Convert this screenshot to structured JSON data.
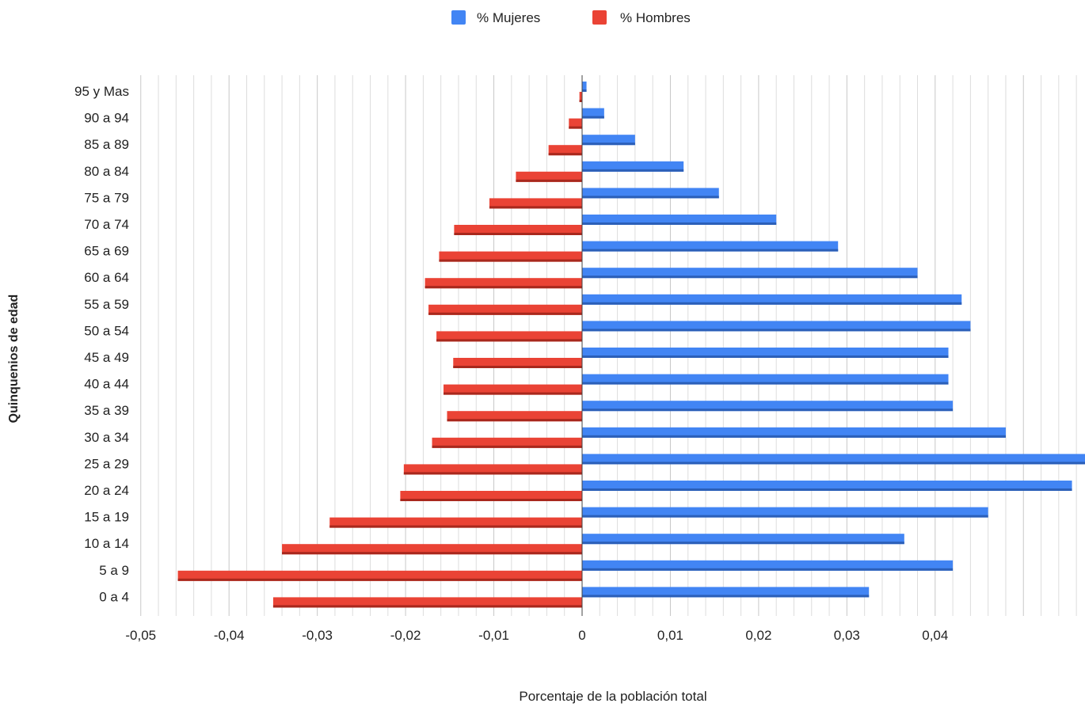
{
  "chart_data": {
    "type": "bar",
    "orientation": "horizontal",
    "xlabel": "Porcentaje de la población total",
    "ylabel": "Quinquenios de edad",
    "xlim": [
      -0.05,
      0.057
    ],
    "x_ticks": [
      {
        "value": -0.05,
        "label": "-0,05"
      },
      {
        "value": -0.04,
        "label": "-0,04"
      },
      {
        "value": -0.03,
        "label": "-0,03"
      },
      {
        "value": -0.02,
        "label": "-0,02"
      },
      {
        "value": -0.01,
        "label": "-0,01"
      },
      {
        "value": 0,
        "label": "0"
      },
      {
        "value": 0.01,
        "label": "0,01"
      },
      {
        "value": 0.02,
        "label": "0,02"
      },
      {
        "value": 0.03,
        "label": "0,03"
      },
      {
        "value": 0.04,
        "label": "0,04"
      }
    ],
    "grid": true,
    "legend_position": "top",
    "categories": [
      "95 y Mas",
      "90 a 94",
      "85 a 89",
      "80 a 84",
      "75 a 79",
      "70 a 74",
      "65 a 69",
      "60 a 64",
      "55 a 59",
      "50 a 54",
      "45 a 49",
      "40 a 44",
      "35 a 39",
      "30 a 34",
      "25 a 29",
      "20 a 24",
      "15 a 19",
      "10 a 14",
      "5 a 9",
      "0 a 4"
    ],
    "series": [
      {
        "name": "% Mujeres",
        "color": "#4285f4",
        "values": [
          0.0005,
          0.0025,
          0.006,
          0.0115,
          0.0155,
          0.022,
          0.029,
          0.038,
          0.043,
          0.044,
          0.0415,
          0.0415,
          0.042,
          0.048,
          0.057,
          0.0555,
          0.046,
          0.0365,
          0.042,
          0.0325
        ]
      },
      {
        "name": "% Hombres",
        "color": "#ea4335",
        "values": [
          -0.0003,
          -0.0015,
          -0.0038,
          -0.0075,
          -0.0105,
          -0.0145,
          -0.0162,
          -0.0178,
          -0.0174,
          -0.0165,
          -0.0146,
          -0.0157,
          -0.0153,
          -0.017,
          -0.0202,
          -0.0206,
          -0.0286,
          -0.034,
          -0.0458,
          -0.035
        ]
      }
    ]
  }
}
